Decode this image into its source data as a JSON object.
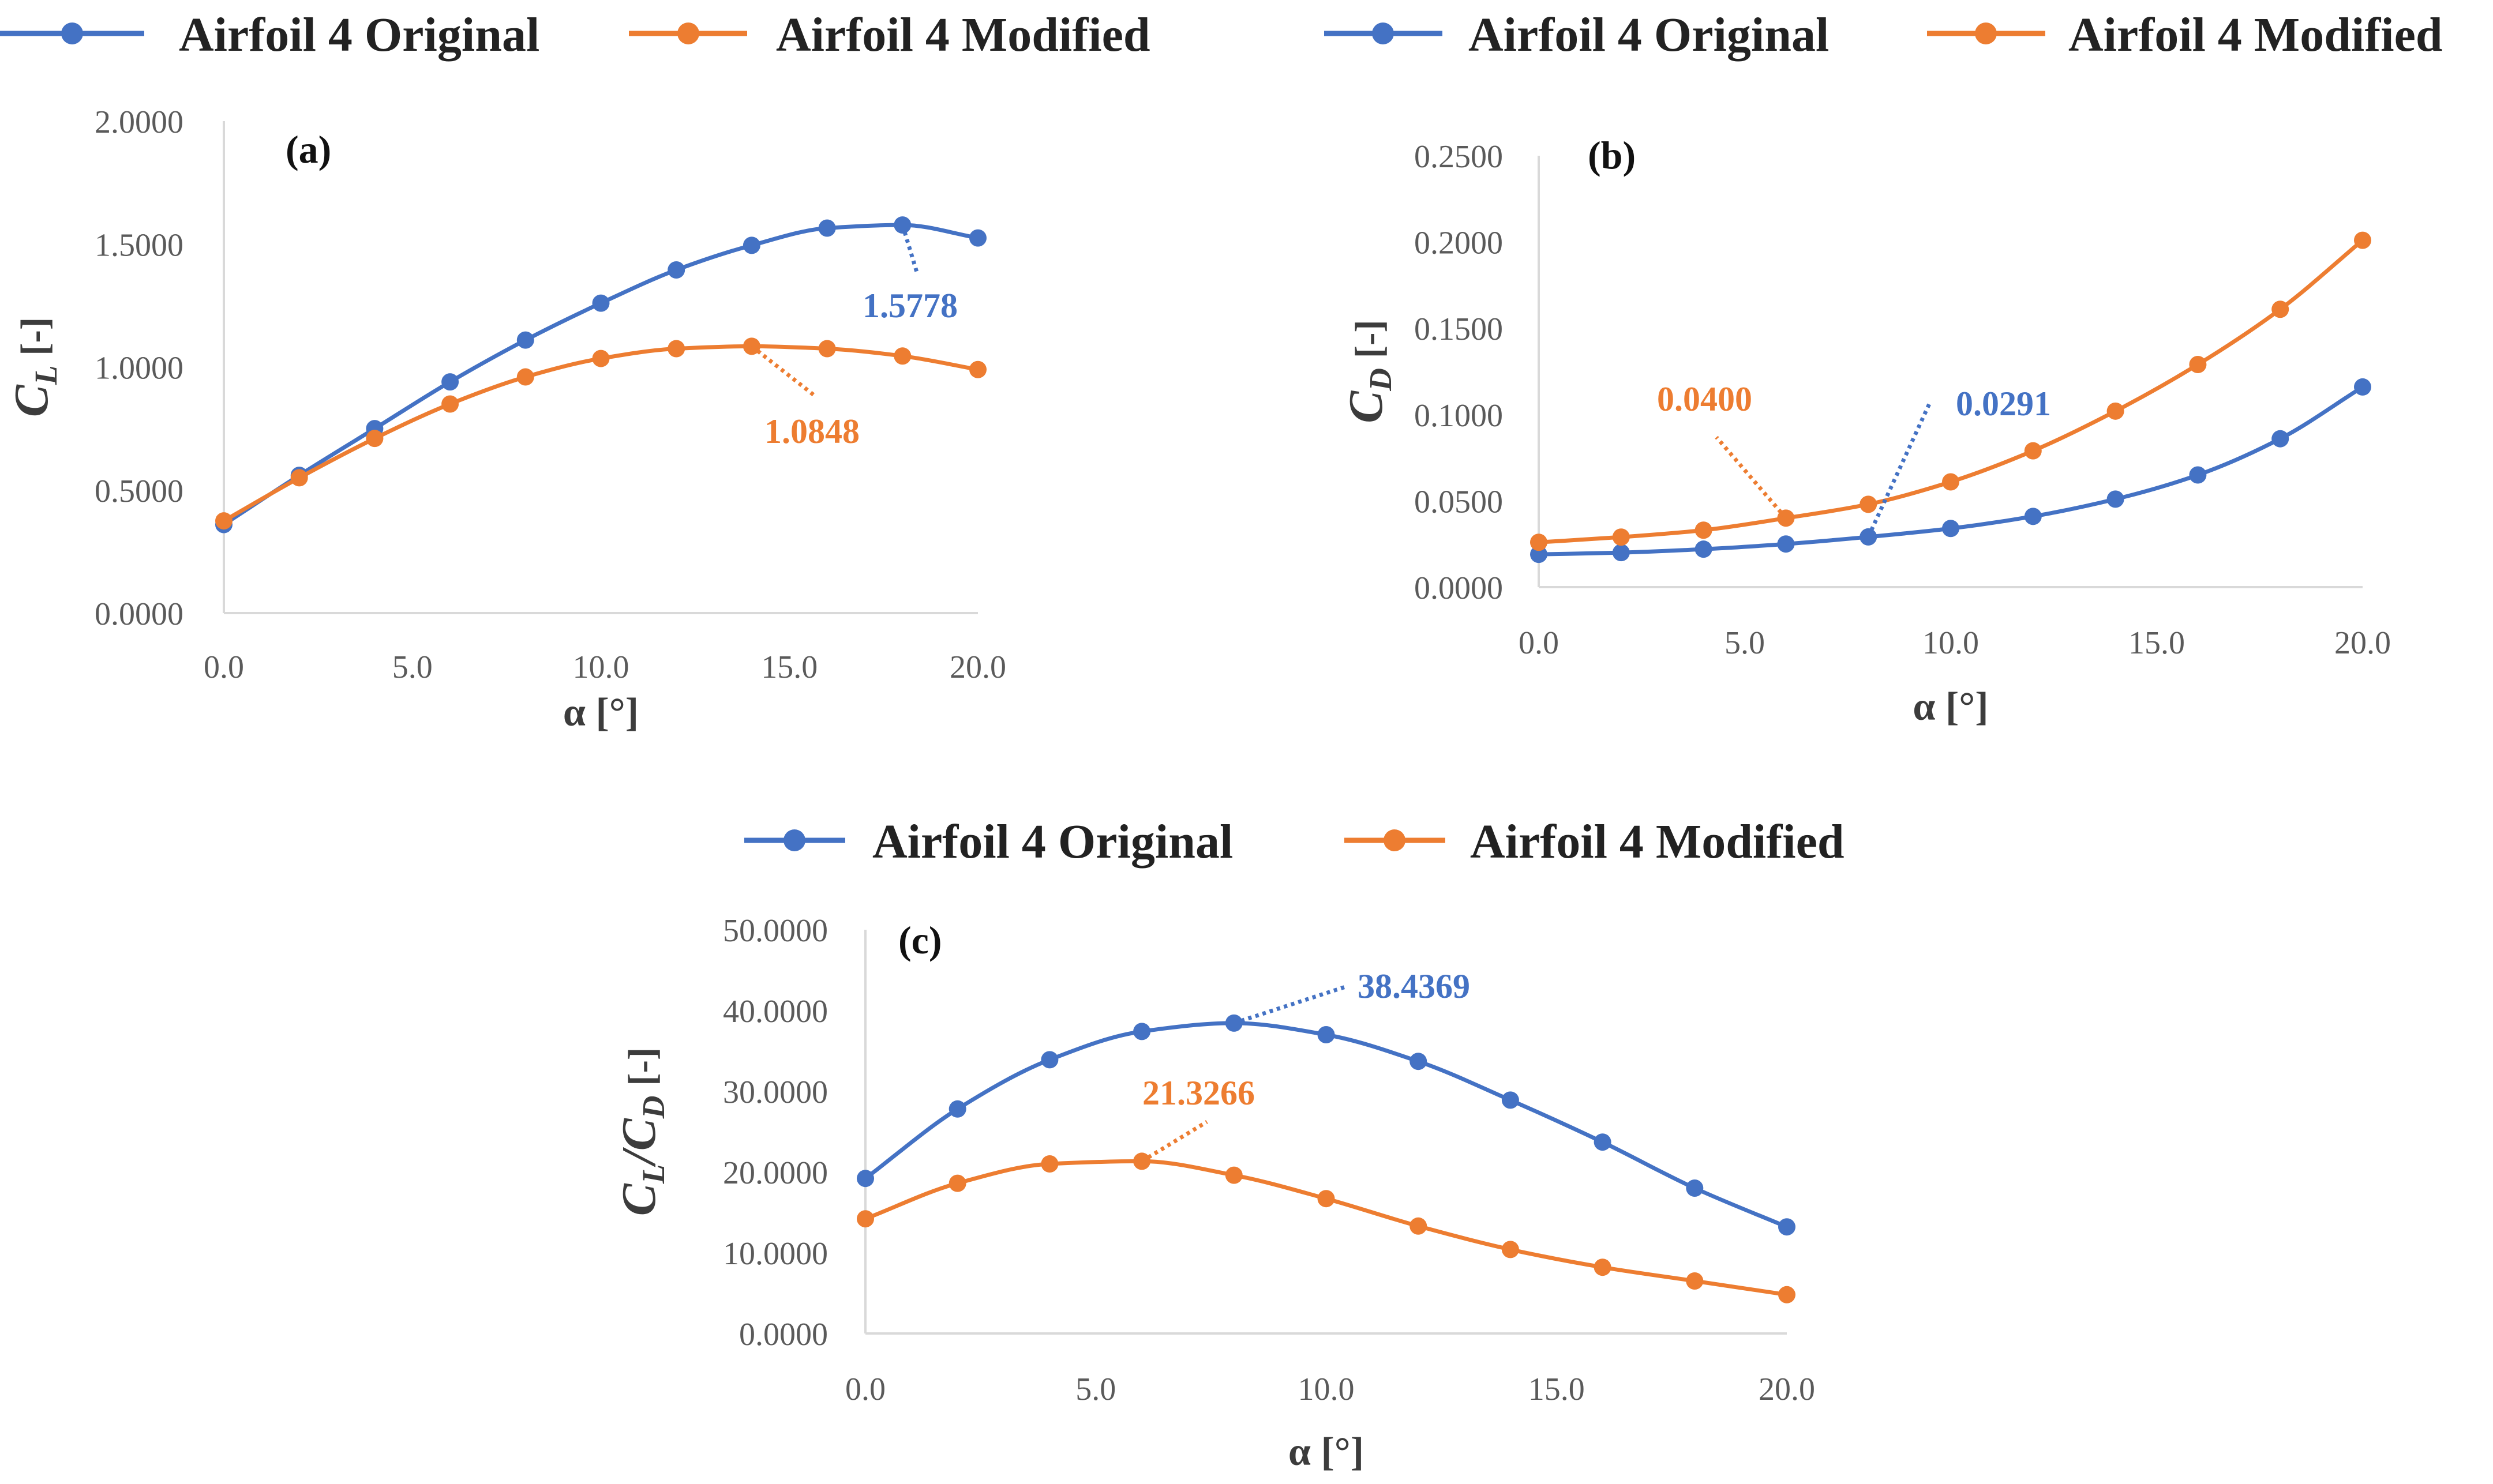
{
  "colors": {
    "original": "#4472C4",
    "modified": "#ED7D31",
    "axis": "#d9d9d9"
  },
  "legend": {
    "original": "Airfoil 4 Original",
    "modified": "Airfoil 4 Modified"
  },
  "chart_data": [
    {
      "id": "a",
      "type": "line",
      "panel_label": "(a)",
      "xlabel": "α [°]",
      "ylabel": "C_L [-]",
      "ylabel_main": "C",
      "ylabel_sub": "L",
      "ylabel_unit": "[-]",
      "xlim": [
        0,
        20
      ],
      "ylim": [
        0,
        2
      ],
      "xticks": [
        "0.0",
        "5.0",
        "10.0",
        "15.0",
        "20.0"
      ],
      "yticks": [
        "0.0000",
        "0.5000",
        "1.0000",
        "1.5000",
        "2.0000"
      ],
      "x": [
        0,
        2,
        4,
        6,
        8,
        10,
        12,
        14,
        16,
        18,
        20
      ],
      "series": [
        {
          "name": "Airfoil 4 Original",
          "values": [
            0.36,
            0.56,
            0.75,
            0.94,
            1.11,
            1.26,
            1.395,
            1.495,
            1.565,
            1.5778,
            1.525
          ]
        },
        {
          "name": "Airfoil 4 Modified",
          "values": [
            0.375,
            0.55,
            0.71,
            0.85,
            0.96,
            1.035,
            1.075,
            1.0848,
            1.075,
            1.045,
            0.99
          ]
        }
      ],
      "annotations": [
        {
          "series": 0,
          "x": 18,
          "text": "1.5778"
        },
        {
          "series": 1,
          "x": 14,
          "text": "1.0848"
        }
      ]
    },
    {
      "id": "b",
      "type": "line",
      "panel_label": "(b)",
      "xlabel": "α [°]",
      "ylabel": "C_D [-]",
      "ylabel_main": "C",
      "ylabel_sub": "D",
      "ylabel_unit": "[-]",
      "xlim": [
        0,
        20
      ],
      "ylim": [
        0,
        0.25
      ],
      "xticks": [
        "0.0",
        "5.0",
        "10.0",
        "15.0",
        "20.0"
      ],
      "yticks": [
        "0.0000",
        "0.0500",
        "0.1000",
        "0.1500",
        "0.2000",
        "0.2500"
      ],
      "x": [
        0,
        2,
        4,
        6,
        8,
        10,
        12,
        14,
        16,
        18,
        20
      ],
      "series": [
        {
          "name": "Airfoil 4 Original",
          "values": [
            0.019,
            0.02,
            0.022,
            0.025,
            0.0291,
            0.034,
            0.041,
            0.051,
            0.065,
            0.086,
            0.116
          ]
        },
        {
          "name": "Airfoil 4 Modified",
          "values": [
            0.026,
            0.029,
            0.033,
            0.04,
            0.048,
            0.061,
            0.079,
            0.102,
            0.129,
            0.161,
            0.201
          ]
        }
      ],
      "annotations": [
        {
          "series": 0,
          "x": 8,
          "text": "0.0291"
        },
        {
          "series": 1,
          "x": 6,
          "text": "0.0400"
        }
      ]
    },
    {
      "id": "c",
      "type": "line",
      "panel_label": "(c)",
      "xlabel": "α [°]",
      "ylabel": "C_L/C_D [-]",
      "ylabel_main": "C",
      "ylabel_sub": "L",
      "ylabel_main2": "/C",
      "ylabel_sub2": "D",
      "ylabel_unit": "[-]",
      "xlim": [
        0,
        20
      ],
      "ylim": [
        0,
        50
      ],
      "xticks": [
        "0.0",
        "5.0",
        "10.0",
        "15.0",
        "20.0"
      ],
      "yticks": [
        "0.0000",
        "10.0000",
        "20.0000",
        "30.0000",
        "40.0000",
        "50.0000"
      ],
      "x": [
        0,
        2,
        4,
        6,
        8,
        10,
        12,
        14,
        16,
        18,
        20
      ],
      "series": [
        {
          "name": "Airfoil 4 Original",
          "values": [
            19.2,
            27.8,
            33.9,
            37.4,
            38.4369,
            37.0,
            33.7,
            28.9,
            23.7,
            18.0,
            13.2
          ]
        },
        {
          "name": "Airfoil 4 Modified",
          "values": [
            14.2,
            18.6,
            21.0,
            21.3266,
            19.6,
            16.7,
            13.3,
            10.4,
            8.2,
            6.5,
            4.8
          ]
        }
      ],
      "annotations": [
        {
          "series": 0,
          "x": 8,
          "text": "38.4369"
        },
        {
          "series": 1,
          "x": 6,
          "text": "21.3266"
        }
      ]
    }
  ]
}
